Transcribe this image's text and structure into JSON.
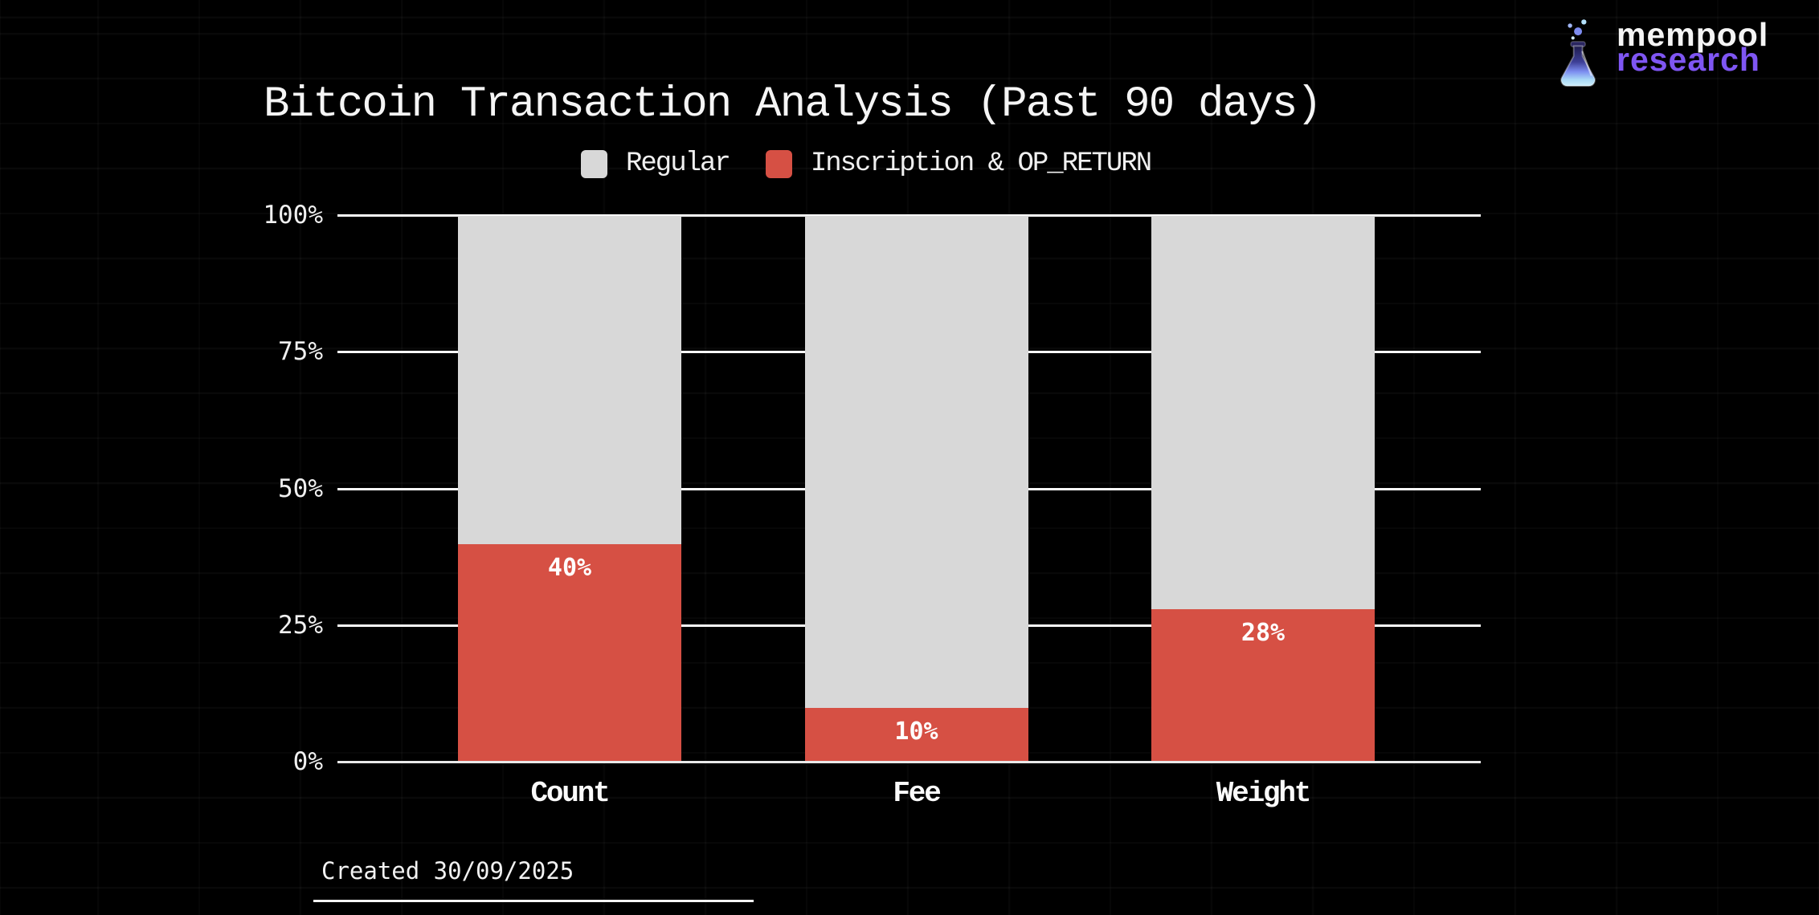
{
  "page": {
    "background": "#000000"
  },
  "header": {
    "title": "Bitcoin Transaction Analysis (Past 90 days)"
  },
  "logo": {
    "line1": "mempool",
    "line2": "research",
    "line1_color": "#f5f5f5",
    "line2_color": "#7f56f3",
    "icon": "flask-icon"
  },
  "legend": [
    {
      "label": "Regular",
      "color": "#d8d8d8"
    },
    {
      "label": "Inscription & OP_RETURN",
      "color": "#d65044"
    }
  ],
  "footer": {
    "created": "Created 30/09/2025"
  },
  "chart_data": {
    "type": "bar",
    "stacked": true,
    "title": "Bitcoin Transaction Analysis (Past 90 days)",
    "categories": [
      "Count",
      "Fee",
      "Weight"
    ],
    "series": [
      {
        "name": "Regular",
        "color": "#d8d8d8",
        "values": [
          60,
          90,
          72
        ]
      },
      {
        "name": "Inscription & OP_RETURN",
        "color": "#d65044",
        "values": [
          40,
          10,
          28
        ]
      }
    ],
    "bar_labels": [
      "40%",
      "10%",
      "28%"
    ],
    "yticks": [
      "0%",
      "25%",
      "50%",
      "75%",
      "100%"
    ],
    "ytick_values": [
      0,
      25,
      50,
      75,
      100
    ],
    "ylim": [
      0,
      100
    ],
    "xlabel": "",
    "ylabel": "",
    "grid": true,
    "grid_color": "#fafafa",
    "legend_position": "top",
    "background": "#000000"
  }
}
